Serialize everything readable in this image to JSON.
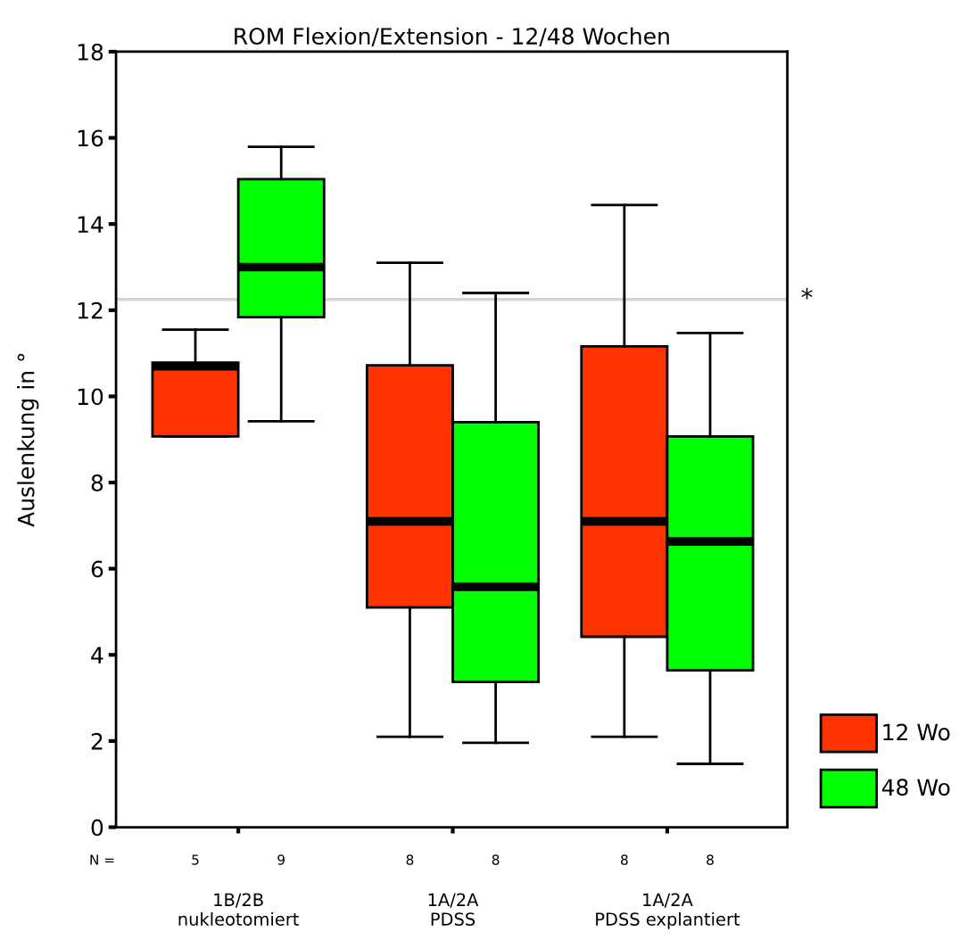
{
  "chart_data": {
    "type": "box",
    "title": "ROM Flexion/Extension - 12/48 Wochen",
    "ylabel": "Auslenkung in °",
    "categories": [
      "1B/2B\nnukleotomiert",
      "1A/2A\nPDSS",
      "1A/2A\nPDSS explantiert"
    ],
    "series": [
      {
        "name": "12 Wo",
        "color": "#ff3300",
        "value_labels": [
          "5",
          "8",
          "8"
        ],
        "boxes": [
          {
            "low": 9.07,
            "q1": 9.07,
            "median": 10.7,
            "q3": 10.78,
            "high": 11.55
          },
          {
            "low": 2.1,
            "q1": 5.1,
            "median": 7.1,
            "q3": 10.72,
            "high": 13.1
          },
          {
            "low": 2.1,
            "q1": 4.42,
            "median": 7.1,
            "q3": 11.16,
            "high": 14.44
          }
        ]
      },
      {
        "name": "48 Wo",
        "color": "#00ff00",
        "value_labels": [
          "9",
          "8",
          "8"
        ],
        "boxes": [
          {
            "low": 9.42,
            "q1": 11.84,
            "median": 13.0,
            "q3": 15.04,
            "high": 15.79
          },
          {
            "low": 1.96,
            "q1": 3.37,
            "median": 5.58,
            "q3": 9.4,
            "high": 12.4
          },
          {
            "low": 1.47,
            "q1": 3.64,
            "median": 6.63,
            "q3": 9.07,
            "high": 11.47
          }
        ]
      }
    ],
    "ylim": [
      0,
      18
    ],
    "yticks": [
      0,
      2,
      4,
      6,
      8,
      10,
      12,
      14,
      16,
      18
    ],
    "ref_lines": [
      {
        "axis": "y",
        "value": 12.25,
        "label": "*",
        "color": "#d3d3d3"
      }
    ],
    "annotations": [
      "N ="
    ],
    "grid": false,
    "legend": "bottom right"
  }
}
